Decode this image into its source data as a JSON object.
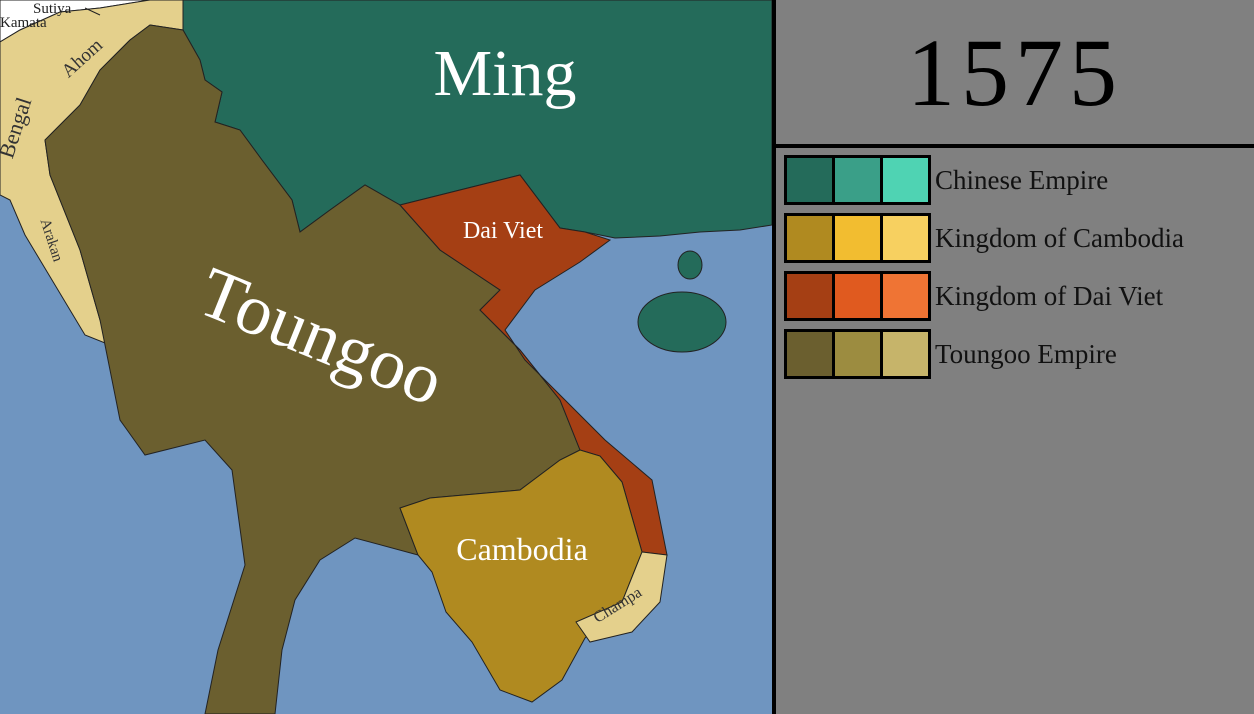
{
  "year": "1575",
  "map": {
    "labels": {
      "ming": "Ming",
      "toungoo": "Toungoo",
      "dai_viet": "Dai Viet",
      "cambodia": "Cambodia",
      "champa": "Champa",
      "bengal": "Bengal",
      "ahom": "Ahom",
      "arakan": "Arakan",
      "sutiya": "Sutiya",
      "kamata": "Kamata"
    },
    "colors": {
      "ocean": "#6f95c0",
      "ming": "#246b5a",
      "toungoo": "#6b5f2f",
      "dai_viet": "#a53f14",
      "cambodia": "#b08a20",
      "minor_states": "#e4d08c",
      "unclaimed": "#ffffff"
    }
  },
  "legend": [
    {
      "label": "Chinese Empire",
      "colors": [
        "#246b5a",
        "#3a9f88",
        "#4fd3b3"
      ]
    },
    {
      "label": "Kingdom of Cambodia",
      "colors": [
        "#b08a20",
        "#f2bd30",
        "#f7d060"
      ]
    },
    {
      "label": "Kingdom of Dai Viet",
      "colors": [
        "#a53f14",
        "#e05a1f",
        "#ef7434"
      ]
    },
    {
      "label": "Toungoo Empire",
      "colors": [
        "#6b5f2f",
        "#9c8c40",
        "#c6b46a"
      ]
    }
  ]
}
